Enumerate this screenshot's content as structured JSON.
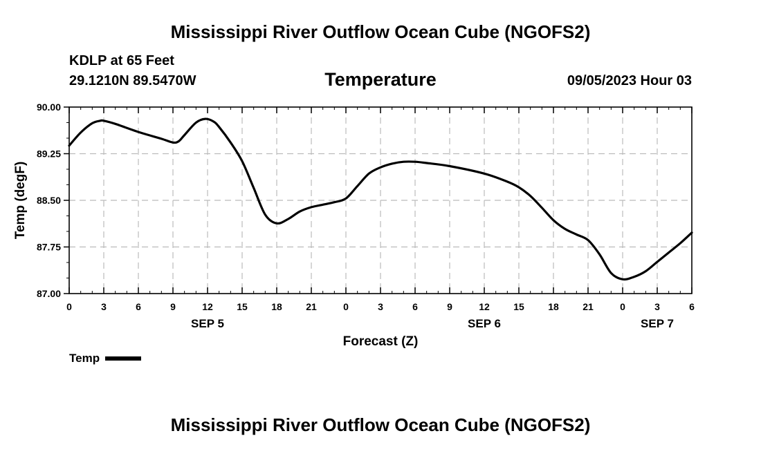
{
  "page": {
    "title_top": "Mississippi River Outflow Ocean Cube (NGOFS2)",
    "title_bottom": "Mississippi River Outflow Ocean Cube (NGOFS2)",
    "station": "KDLP at 65 Feet",
    "coords": "29.1210N  89.5470W",
    "subtitle": "Temperature",
    "datetime": "09/05/2023 Hour 03"
  },
  "legend": {
    "label": "Temp",
    "color": "#000000"
  },
  "chart_data": {
    "type": "line",
    "title": "Temperature",
    "xlabel": "Forecast (Z)",
    "ylabel": "Temp (degF)",
    "xlim": [
      0,
      54
    ],
    "ylim": [
      87.0,
      90.0
    ],
    "yticks": [
      "87.00",
      "87.75",
      "88.50",
      "89.25",
      "90.00"
    ],
    "xticks": [
      {
        "hour": 0,
        "label": "0"
      },
      {
        "hour": 3,
        "label": "3"
      },
      {
        "hour": 6,
        "label": "6"
      },
      {
        "hour": 9,
        "label": "9"
      },
      {
        "hour": 12,
        "label": "12"
      },
      {
        "hour": 15,
        "label": "15"
      },
      {
        "hour": 18,
        "label": "18"
      },
      {
        "hour": 21,
        "label": "21"
      },
      {
        "hour": 24,
        "label": "0"
      },
      {
        "hour": 27,
        "label": "3"
      },
      {
        "hour": 30,
        "label": "6"
      },
      {
        "hour": 33,
        "label": "9"
      },
      {
        "hour": 36,
        "label": "12"
      },
      {
        "hour": 39,
        "label": "15"
      },
      {
        "hour": 42,
        "label": "18"
      },
      {
        "hour": 45,
        "label": "21"
      },
      {
        "hour": 48,
        "label": "0"
      },
      {
        "hour": 51,
        "label": "3"
      },
      {
        "hour": 54,
        "label": "6"
      }
    ],
    "day_labels": [
      {
        "hour": 12,
        "label": "SEP 5"
      },
      {
        "hour": 36,
        "label": "SEP 6"
      },
      {
        "hour": 51,
        "label": "SEP 7"
      }
    ],
    "grid": true,
    "series": [
      {
        "name": "Temp",
        "color": "#000000",
        "x": [
          0,
          1,
          2,
          2.7,
          3,
          4,
          6,
          8,
          9,
          9.5,
          10,
          11,
          11.8,
          12.5,
          13,
          14,
          15,
          16,
          17,
          18,
          19,
          20,
          21,
          22,
          23,
          24,
          25,
          26,
          27,
          28,
          29,
          30,
          31,
          33,
          36,
          38,
          39,
          40,
          41,
          42,
          43,
          44,
          45,
          46,
          47,
          48,
          49,
          50,
          51,
          52,
          53,
          54
        ],
        "values": [
          89.38,
          89.59,
          89.74,
          89.78,
          89.78,
          89.73,
          89.6,
          89.49,
          89.43,
          89.45,
          89.55,
          89.75,
          89.81,
          89.77,
          89.68,
          89.43,
          89.13,
          88.7,
          88.27,
          88.13,
          88.2,
          88.32,
          88.39,
          88.43,
          88.47,
          88.53,
          88.73,
          88.93,
          89.03,
          89.09,
          89.12,
          89.12,
          89.1,
          89.05,
          88.93,
          88.8,
          88.71,
          88.57,
          88.38,
          88.18,
          88.04,
          87.95,
          87.86,
          87.63,
          87.33,
          87.23,
          87.27,
          87.36,
          87.51,
          87.66,
          87.81,
          87.98
        ]
      }
    ]
  }
}
